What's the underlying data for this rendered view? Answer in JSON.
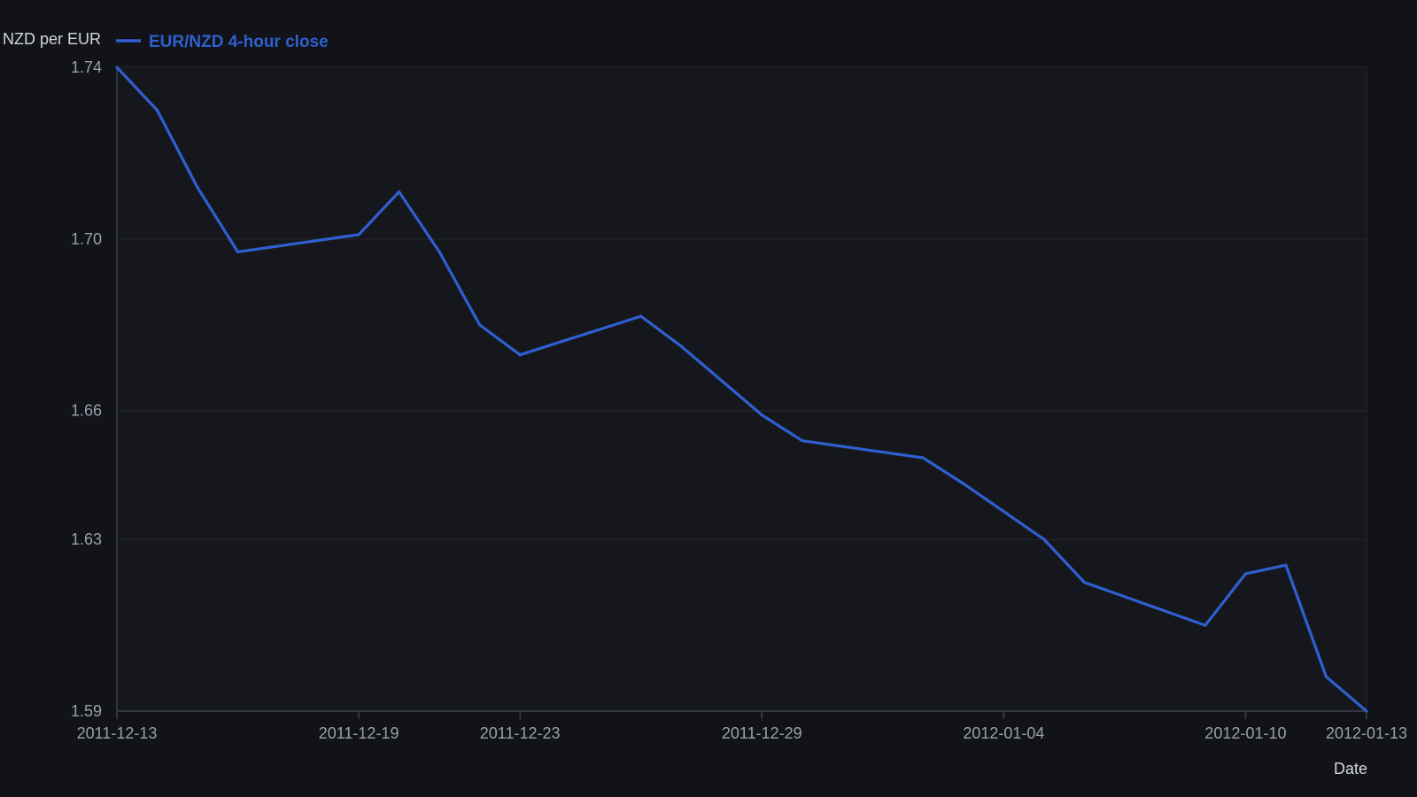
{
  "chart_data": {
    "type": "line",
    "title": "",
    "xlabel": "Date",
    "ylabel": "NZD per EUR",
    "x_type": "date",
    "xlim": [
      "2011-12-13",
      "2012-01-13"
    ],
    "ylim": [
      1.59,
      1.74
    ],
    "yticks": [
      "1.59",
      "1.63",
      "1.66",
      "1.70",
      "1.74"
    ],
    "xticks": [
      "2011-12-13",
      "2011-12-19",
      "2011-12-23",
      "2011-12-29",
      "2012-01-04",
      "2012-01-10",
      "2012-01-13"
    ],
    "grid": "horizontal",
    "legend_position": "top-left",
    "colors": {
      "background": "#111318",
      "plot_background": "#15171c",
      "grid": "#262a31",
      "axis": "#3a3f48",
      "series": "#2f5fd0"
    },
    "series": [
      {
        "name": "EUR/NZD 4-hour close",
        "points": [
          {
            "x": "2011-12-13",
            "y": 1.74
          },
          {
            "x": "2011-12-14",
            "y": 1.73
          },
          {
            "x": "2011-12-15",
            "y": 1.712
          },
          {
            "x": "2011-12-16",
            "y": 1.697
          },
          {
            "x": "2011-12-19",
            "y": 1.701
          },
          {
            "x": "2011-12-20",
            "y": 1.711
          },
          {
            "x": "2011-12-21",
            "y": 1.697
          },
          {
            "x": "2011-12-22",
            "y": 1.68
          },
          {
            "x": "2011-12-23",
            "y": 1.673
          },
          {
            "x": "2011-12-26",
            "y": 1.682
          },
          {
            "x": "2011-12-27",
            "y": 1.675
          },
          {
            "x": "2011-12-29",
            "y": 1.659
          },
          {
            "x": "2011-12-30",
            "y": 1.653
          },
          {
            "x": "2012-01-02",
            "y": 1.649
          },
          {
            "x": "2012-01-03",
            "y": 1.643
          },
          {
            "x": "2012-01-05",
            "y": 1.63
          },
          {
            "x": "2012-01-06",
            "y": 1.62
          },
          {
            "x": "2012-01-09",
            "y": 1.61
          },
          {
            "x": "2012-01-10",
            "y": 1.622
          },
          {
            "x": "2012-01-11",
            "y": 1.624
          },
          {
            "x": "2012-01-12",
            "y": 1.598
          },
          {
            "x": "2012-01-13",
            "y": 1.59
          }
        ]
      }
    ]
  }
}
